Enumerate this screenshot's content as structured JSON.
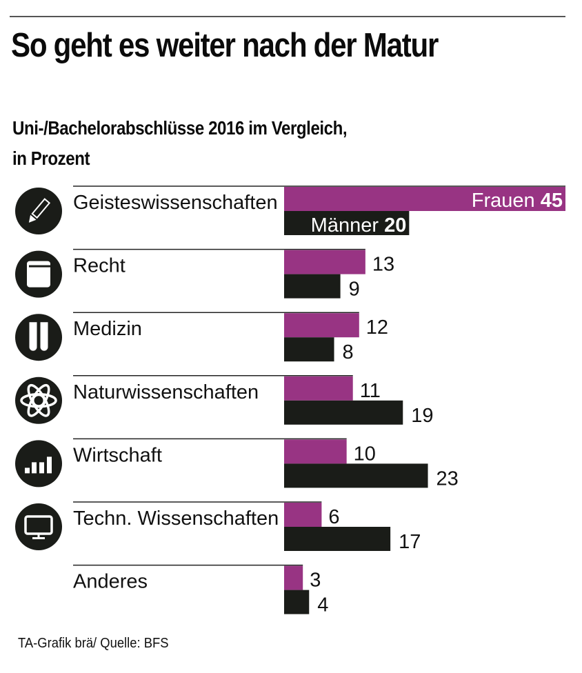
{
  "header": {
    "title": "So geht es weiter nach der Matur",
    "subtitle_line1": "Uni-/Bachelorabschlüsse 2016 im Vergleich,",
    "subtitle_line2": "in Prozent"
  },
  "footer": {
    "credit": "TA-Grafik brä/ Quelle: BFS"
  },
  "colors": {
    "women": "#983483",
    "men": "#1a1c18",
    "icon_bg": "#1a1c18"
  },
  "chart_data": {
    "type": "bar",
    "orientation": "horizontal",
    "title": "So geht es weiter nach der Matur",
    "subtitle": "Uni-/Bachelorabschlüsse 2016 im Vergleich, in Prozent",
    "xlabel": "",
    "ylabel": "",
    "xlim": [
      0,
      45
    ],
    "grid": false,
    "legend": "inline-first-bar",
    "categories": [
      "Geisteswissenschaften",
      "Recht",
      "Medizin",
      "Naturwissenschaften",
      "Wirtschaft",
      "Techn. Wissenschaften",
      "Anderes"
    ],
    "icons": [
      "pencil-icon",
      "book-icon",
      "test-tubes-icon",
      "atom-icon",
      "bar-chart-icon",
      "monitor-icon",
      ""
    ],
    "series": [
      {
        "name": "Frauen",
        "values": [
          45,
          13,
          12,
          11,
          10,
          6,
          3
        ]
      },
      {
        "name": "Männer",
        "values": [
          20,
          9,
          8,
          19,
          23,
          17,
          4
        ]
      }
    ]
  }
}
